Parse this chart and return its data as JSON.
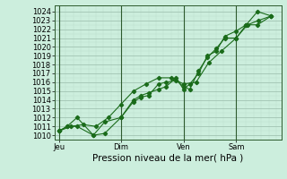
{
  "background_color": "#cceedd",
  "grid_major_color": "#99bbaa",
  "grid_minor_color": "#bbddcc",
  "line_color": "#1a6b1a",
  "marker_color": "#1a6b1a",
  "xlabel": "Pression niveau de la mer( hPa )",
  "ylim_min": 1009.5,
  "ylim_max": 1024.7,
  "xlim_min": -0.15,
  "xlim_max": 8.9,
  "yticks": [
    1010,
    1011,
    1012,
    1013,
    1014,
    1015,
    1016,
    1017,
    1018,
    1019,
    1020,
    1021,
    1022,
    1023,
    1024
  ],
  "xtick_labels": [
    "Jeu",
    "Dim",
    "Ven",
    "Sam"
  ],
  "xtick_positions": [
    0.05,
    2.5,
    5.0,
    7.1
  ],
  "vline_positions": [
    0.05,
    2.5,
    5.0,
    7.1
  ],
  "series1_x": [
    0.05,
    0.35,
    0.75,
    1.4,
    1.85,
    2.5,
    3.0,
    3.3,
    3.6,
    4.0,
    4.3,
    4.7,
    5.0,
    5.25,
    5.6,
    5.95,
    6.3,
    6.65,
    7.1,
    7.5,
    7.95,
    8.5
  ],
  "series1_y": [
    1010.5,
    1011.0,
    1011.0,
    1010.0,
    1010.2,
    1012.0,
    1013.8,
    1014.3,
    1014.5,
    1015.8,
    1016.0,
    1016.2,
    1015.5,
    1015.2,
    1017.3,
    1018.8,
    1019.8,
    1021.0,
    1021.0,
    1022.5,
    1024.0,
    1023.5
  ],
  "series2_x": [
    0.05,
    0.35,
    0.75,
    1.4,
    1.85,
    2.5,
    3.0,
    3.3,
    3.6,
    4.0,
    4.3,
    4.7,
    5.0,
    5.25,
    5.6,
    5.95,
    6.3,
    6.65,
    7.1,
    7.5,
    7.95,
    8.5
  ],
  "series2_y": [
    1010.5,
    1011.0,
    1012.0,
    1010.0,
    1011.5,
    1012.0,
    1014.0,
    1014.5,
    1014.8,
    1015.2,
    1015.5,
    1016.5,
    1015.2,
    1015.8,
    1017.0,
    1019.0,
    1019.5,
    1021.2,
    1021.8,
    1022.5,
    1022.5,
    1023.5
  ],
  "series3_x": [
    0.05,
    0.5,
    1.0,
    1.5,
    2.0,
    2.5,
    3.0,
    3.5,
    4.0,
    4.5,
    5.0,
    5.5,
    6.0,
    6.5,
    7.1,
    7.55,
    8.0,
    8.5
  ],
  "series3_y": [
    1010.5,
    1011.0,
    1011.2,
    1011.0,
    1012.0,
    1013.5,
    1015.0,
    1015.8,
    1016.5,
    1016.5,
    1015.8,
    1016.0,
    1018.2,
    1019.5,
    1021.0,
    1022.5,
    1023.0,
    1023.5
  ],
  "tick_fontsize": 6,
  "label_fontsize": 7.5,
  "linewidth": 0.8,
  "markersize": 2.2
}
